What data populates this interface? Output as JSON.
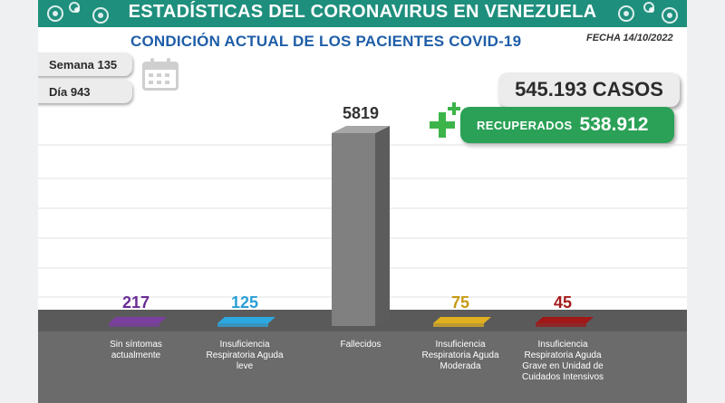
{
  "header": {
    "title": "ESTADÍSTICAS DEL CORONAVIRUS EN VENEZUELA",
    "subtitle": "CONDICIÓN ACTUAL DE LOS PACIENTES COVID-19",
    "fecha": "FECHA 14/10/2022"
  },
  "info": {
    "semana": "Semana 135",
    "dia": "Día 943"
  },
  "totals": {
    "casos": "545.193 CASOS",
    "recuperados_label": "RECUPERADOS",
    "recuperados_value": "538.912"
  },
  "colors": {
    "title_band": "#1f8f7d",
    "subtitle": "#1f5ea8",
    "recuperados": "#2aa156"
  },
  "chart_data": {
    "type": "bar",
    "categories": [
      "Sin síntomas actualmente",
      "Insuficiencia Respiratoria Aguda leve",
      "Fallecidos",
      "Insuficiencia Respiratoria Aguda Moderada",
      "Insuficiencia Respiratoria Aguda Grave en Unidad de Cuidados Intensivos"
    ],
    "category_lines": [
      [
        "Sin síntomas",
        "actualmente"
      ],
      [
        "Insuficiencia",
        "Respiratoria Aguda",
        "leve"
      ],
      [
        "Fallecidos"
      ],
      [
        "Insuficiencia",
        "Respiratoria Aguda",
        "Moderada"
      ],
      [
        "Insuficiencia",
        "Respiratoria Aguda",
        "Grave en Unidad de",
        "Cuidados Intensivos"
      ]
    ],
    "values": [
      217,
      125,
      5819,
      75,
      45
    ],
    "value_labels": [
      "217",
      "125",
      "5819",
      "75",
      "45"
    ],
    "colors": [
      "#7b3fa0",
      "#2ea8e0",
      "#808080",
      "#e0b020",
      "#a01818"
    ],
    "label_colors": [
      "#6a2d94",
      "#2a9fd6",
      "#333333",
      "#c79a14",
      "#a51c1c"
    ],
    "grid": true,
    "legend": "none"
  }
}
